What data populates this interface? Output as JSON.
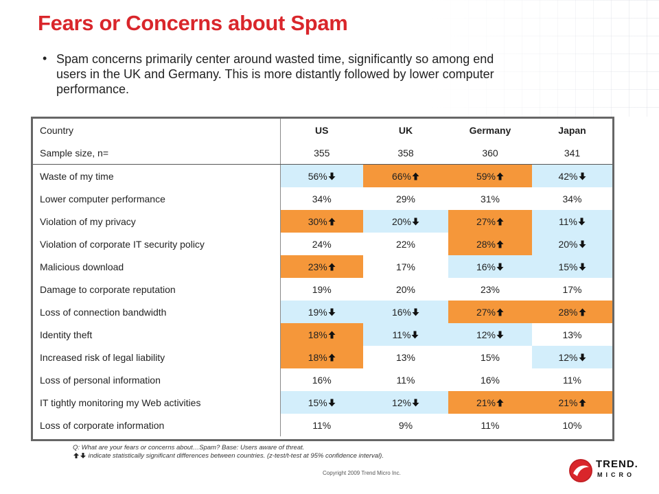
{
  "title": "Fears or Concerns about Spam",
  "bullet": "Spam concerns primarily center around wasted time, significantly so among end users in the UK and Germany. This is more distantly followed by lower computer performance.",
  "colors": {
    "title": "#d9262b",
    "higher": "#f5973a",
    "lower": "#d3eefb"
  },
  "table": {
    "header": {
      "label": "Country",
      "cols": [
        "US",
        "UK",
        "Germany",
        "Japan"
      ]
    },
    "sample": {
      "label": "Sample size, n=",
      "values": [
        "355",
        "358",
        "360",
        "341"
      ]
    },
    "rows": [
      {
        "label": "Waste of my time",
        "cells": [
          {
            "v": "56%",
            "s": "down"
          },
          {
            "v": "66%",
            "s": "up"
          },
          {
            "v": "59%",
            "s": "up"
          },
          {
            "v": "42%",
            "s": "down"
          }
        ]
      },
      {
        "label": "Lower computer performance",
        "cells": [
          {
            "v": "34%",
            "s": ""
          },
          {
            "v": "29%",
            "s": ""
          },
          {
            "v": "31%",
            "s": ""
          },
          {
            "v": "34%",
            "s": ""
          }
        ]
      },
      {
        "label": "Violation of my privacy",
        "cells": [
          {
            "v": "30%",
            "s": "up"
          },
          {
            "v": "20%",
            "s": "down"
          },
          {
            "v": "27%",
            "s": "up"
          },
          {
            "v": "11%",
            "s": "down"
          }
        ]
      },
      {
        "label": "Violation of corporate IT security policy",
        "cells": [
          {
            "v": "24%",
            "s": ""
          },
          {
            "v": "22%",
            "s": ""
          },
          {
            "v": "28%",
            "s": "up"
          },
          {
            "v": "20%",
            "s": "down"
          }
        ]
      },
      {
        "label": "Malicious download",
        "cells": [
          {
            "v": "23%",
            "s": "up"
          },
          {
            "v": "17%",
            "s": ""
          },
          {
            "v": "16%",
            "s": "down"
          },
          {
            "v": "15%",
            "s": "down"
          }
        ]
      },
      {
        "label": "Damage to corporate reputation",
        "cells": [
          {
            "v": "19%",
            "s": ""
          },
          {
            "v": "20%",
            "s": ""
          },
          {
            "v": "23%",
            "s": ""
          },
          {
            "v": "17%",
            "s": ""
          }
        ]
      },
      {
        "label": "Loss of connection bandwidth",
        "cells": [
          {
            "v": "19%",
            "s": "down"
          },
          {
            "v": "16%",
            "s": "down"
          },
          {
            "v": "27%",
            "s": "up"
          },
          {
            "v": "28%",
            "s": "up"
          }
        ]
      },
      {
        "label": "Identity theft",
        "cells": [
          {
            "v": "18%",
            "s": "up"
          },
          {
            "v": "11%",
            "s": "down"
          },
          {
            "v": "12%",
            "s": "down"
          },
          {
            "v": "13%",
            "s": ""
          }
        ]
      },
      {
        "label": "Increased risk of legal liability",
        "cells": [
          {
            "v": "18%",
            "s": "up"
          },
          {
            "v": "13%",
            "s": ""
          },
          {
            "v": "15%",
            "s": ""
          },
          {
            "v": "12%",
            "s": "down"
          }
        ]
      },
      {
        "label": "Loss of personal information",
        "cells": [
          {
            "v": "16%",
            "s": ""
          },
          {
            "v": "11%",
            "s": ""
          },
          {
            "v": "16%",
            "s": ""
          },
          {
            "v": "11%",
            "s": ""
          }
        ]
      },
      {
        "label": "IT tightly monitoring my Web activities",
        "cells": [
          {
            "v": "15%",
            "s": "down"
          },
          {
            "v": "12%",
            "s": "down"
          },
          {
            "v": "21%",
            "s": "up"
          },
          {
            "v": "21%",
            "s": "up"
          }
        ]
      },
      {
        "label": "Loss of corporate information",
        "cells": [
          {
            "v": "11%",
            "s": ""
          },
          {
            "v": "9%",
            "s": ""
          },
          {
            "v": "11%",
            "s": ""
          },
          {
            "v": "10%",
            "s": ""
          }
        ]
      }
    ]
  },
  "footnote": {
    "line1": "Q: What are your fears or concerns about…Spam? Base: Users aware of threat.",
    "line2": "indicate statistically significant differences between countries. (z-test/t-test at 95% confidence interval)."
  },
  "copyright": "Copyright 2009   Trend Micro Inc.",
  "logo": {
    "line1": "TREND.",
    "line2": "MICRO"
  },
  "icons": {
    "up": "arrow-up-icon",
    "down": "arrow-down-icon"
  }
}
